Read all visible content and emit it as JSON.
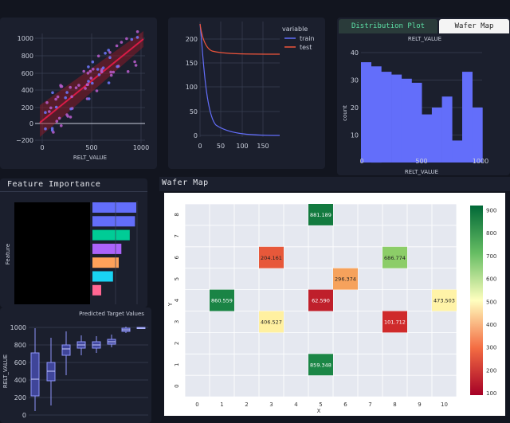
{
  "regression": {
    "xlabel": "RELT_VALUE",
    "x_ticks": [
      "0",
      "500",
      "1000"
    ],
    "y_ticks": [
      "1000",
      "800",
      "600",
      "400",
      "200",
      "0",
      "−200"
    ]
  },
  "loss_chart": {
    "legend_title": "variable",
    "series": [
      {
        "name": "train",
        "color": "#636efa"
      },
      {
        "name": "test",
        "color": "#ef553b"
      }
    ],
    "x_ticks": [
      "0",
      "50",
      "100",
      "150"
    ],
    "y_ticks": [
      "200",
      "150",
      "100",
      "50",
      "0"
    ]
  },
  "distribution": {
    "tabs": [
      {
        "label": "Distribution Plot",
        "active": true
      },
      {
        "label": "Wafer Map",
        "active": false
      }
    ],
    "title": "RELT_VALUE",
    "xlabel": "RELT_VALUE",
    "ylabel": "count",
    "x_ticks": [
      "0",
      "500",
      "1000"
    ],
    "y_ticks": [
      "40",
      "30",
      "20",
      "10",
      "0"
    ]
  },
  "feature_importance": {
    "header": "Feature Importance",
    "ylabel": "Feature",
    "bar_colors": [
      "#636efa",
      "#636efa",
      "#00cc96",
      "#ab63fa",
      "#ffa15a",
      "#19d3f3",
      "#ff6692"
    ],
    "bar_fractions": [
      1.0,
      0.97,
      0.85,
      0.66,
      0.6,
      0.47,
      0.2
    ]
  },
  "box_chart": {
    "title": "Predicted Target Values",
    "ylabel": "RELT_VALUE",
    "y_ticks": [
      "1000",
      "800",
      "600",
      "400",
      "200",
      "0"
    ]
  },
  "wafer_map": {
    "header": "Wafer Map",
    "xlabel": "X",
    "ylabel": "Y",
    "x_ticks": [
      "0",
      "1",
      "2",
      "3",
      "4",
      "5",
      "6",
      "7",
      "8",
      "9",
      "10"
    ],
    "y_ticks": [
      "8",
      "7",
      "6",
      "5",
      "4",
      "3",
      "2",
      "1",
      "0"
    ],
    "cells": [
      {
        "x": 5,
        "y": 8,
        "label": "881.189",
        "color": "#137a3f"
      },
      {
        "x": 3,
        "y": 6,
        "label": "204.161",
        "color": "#e7583a"
      },
      {
        "x": 8,
        "y": 6,
        "label": "686.774",
        "color": "#8ccd68"
      },
      {
        "x": 6,
        "y": 5,
        "label": "296.374",
        "color": "#f6a25c"
      },
      {
        "x": 1,
        "y": 4,
        "label": "860.559",
        "color": "#1a8445"
      },
      {
        "x": 5,
        "y": 4,
        "label": "62.590",
        "color": "#bf1f2b"
      },
      {
        "x": 10,
        "y": 4,
        "label": "473.503",
        "color": "#fff3a8"
      },
      {
        "x": 3,
        "y": 3,
        "label": "406.527",
        "color": "#fff0a0"
      },
      {
        "x": 8,
        "y": 3,
        "label": "101.712",
        "color": "#cf2a2b"
      },
      {
        "x": 5,
        "y": 1,
        "label": "859.348",
        "color": "#1b8646"
      }
    ],
    "colorbar_ticks": [
      "900",
      "800",
      "700",
      "600",
      "500",
      "400",
      "300",
      "200",
      "100"
    ]
  }
}
